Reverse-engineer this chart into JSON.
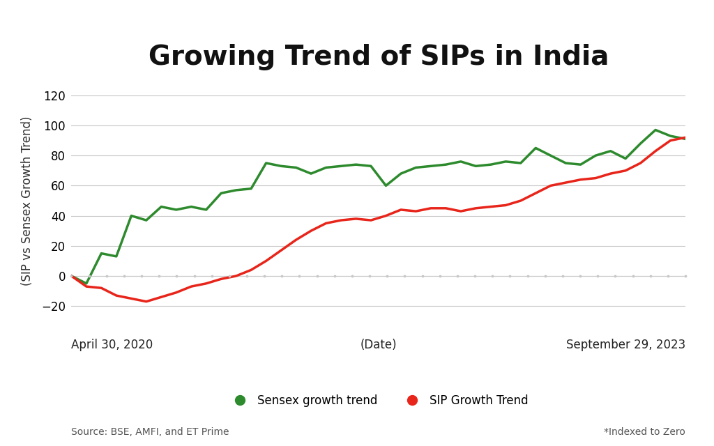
{
  "title": "Growing Trend of SIPs in India",
  "ylabel": "(SIP vs Sensex Growth Trend)",
  "xlabel": "(Date)",
  "x_start_label": "April 30, 2020",
  "x_end_label": "September 29, 2023",
  "ylim": [
    -30,
    130
  ],
  "yticks": [
    -20,
    0,
    20,
    40,
    60,
    80,
    100,
    120
  ],
  "source_text": "Source: BSE, AMFI, and ET Prime",
  "indexed_text": "*Indexed to Zero",
  "background_color": "#ffffff",
  "grid_color": "#c8c8c8",
  "sensex_color": "#2d8a2d",
  "sip_color": "#e8251a",
  "legend_sensex": "Sensex growth trend",
  "legend_sip": "SIP Growth Trend",
  "n_points": 42,
  "sensex_values": [
    0,
    -5,
    15,
    13,
    40,
    37,
    46,
    44,
    46,
    44,
    55,
    57,
    58,
    75,
    73,
    72,
    68,
    72,
    73,
    74,
    73,
    60,
    68,
    72,
    73,
    74,
    76,
    73,
    74,
    76,
    75,
    85,
    80,
    75,
    74,
    80,
    83,
    78,
    88,
    97,
    93,
    91
  ],
  "sip_values": [
    0,
    -7,
    -8,
    -13,
    -15,
    -17,
    -14,
    -11,
    -7,
    -5,
    -2,
    0,
    4,
    10,
    17,
    24,
    30,
    35,
    37,
    38,
    37,
    40,
    44,
    43,
    45,
    45,
    43,
    45,
    46,
    47,
    50,
    55,
    60,
    62,
    64,
    65,
    68,
    70,
    75,
    83,
    90,
    92
  ],
  "title_fontsize": 28,
  "axis_label_fontsize": 12,
  "tick_fontsize": 12,
  "legend_fontsize": 12,
  "source_fontsize": 10,
  "line_width": 2.5,
  "n_xticks": 36
}
